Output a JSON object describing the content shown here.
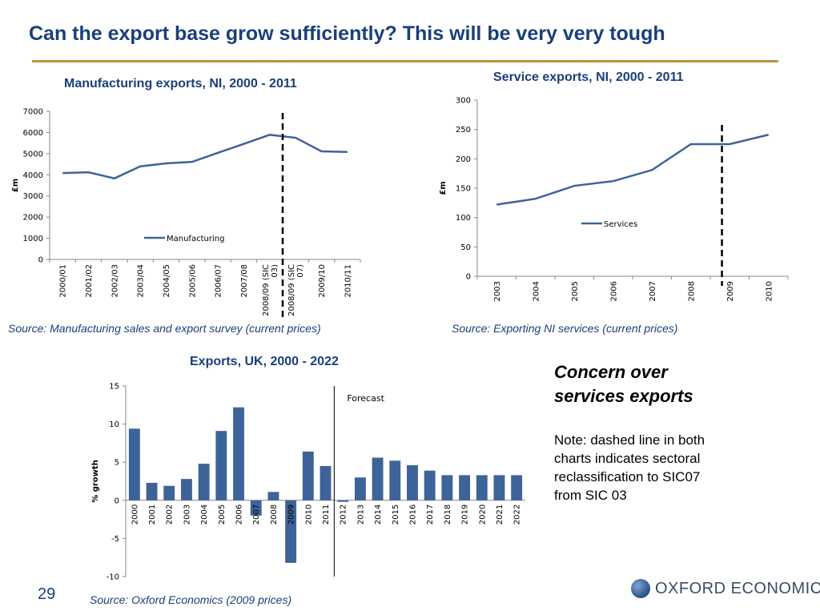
{
  "slide": {
    "title": "Can the export base grow sufficiently? This will be very very tough",
    "page_number": "29",
    "logo_text": "OXFORD ECONOMICS",
    "concern": "Concern over services exports",
    "note": "Note: dashed line in both charts indicates sectoral reclassification to SIC07 from SIC 03"
  },
  "sources": {
    "manufacturing": "Source: Manufacturing sales and export survey (current prices)",
    "services": "Source: Exporting NI services (current prices)",
    "uk": "Source: Oxford Economics (2009 prices)"
  },
  "colors": {
    "series": "#3e6399",
    "title": "#1a3f7a",
    "rule": "#b8973a"
  },
  "chart_data": [
    {
      "id": "manufacturing",
      "type": "line",
      "title": "Manufacturing exports, NI, 2000 - 2011",
      "ylabel": "£m",
      "xlabel": "",
      "ylim": [
        0,
        7000
      ],
      "yticks": [
        0,
        1000,
        2000,
        3000,
        4000,
        5000,
        6000,
        7000
      ],
      "categories": [
        "2000/01",
        "2001/02",
        "2002/03",
        "2003/04",
        "2004/05",
        "2005/06",
        "2006/07",
        "2007/08",
        "2008/09 (SIC 03)",
        "2008/09 (SIC 07)",
        "2009/10",
        "2010/11"
      ],
      "series": [
        {
          "name": "Manufacturing",
          "values": [
            4080,
            4120,
            3830,
            4400,
            4540,
            4610,
            5040,
            5460,
            5890,
            5750,
            5110,
            5080
          ]
        }
      ],
      "legend": "center",
      "grid": false,
      "reclassification_after": "2008/09 (SIC 03)"
    },
    {
      "id": "services",
      "type": "line",
      "title": "Service exports, NI, 2000 - 2011",
      "ylabel": "£m",
      "xlabel": "",
      "ylim": [
        0,
        300
      ],
      "yticks": [
        0,
        50,
        100,
        150,
        200,
        250,
        300
      ],
      "categories": [
        "2003",
        "2004",
        "2005",
        "2006",
        "2007",
        "2008",
        "2009",
        "2010"
      ],
      "series": [
        {
          "name": "Services",
          "values": [
            122,
            132,
            154,
            162,
            181,
            225,
            225,
            241
          ]
        }
      ],
      "legend": "center-right",
      "grid": false,
      "reclassification_at": "2009"
    },
    {
      "id": "uk",
      "type": "bar",
      "title": "Exports, UK, 2000 - 2022",
      "ylabel": "% growth",
      "xlabel": "",
      "ylim": [
        -10,
        15
      ],
      "yticks": [
        -10,
        -5,
        0,
        5,
        10,
        15
      ],
      "categories": [
        "2000",
        "2001",
        "2002",
        "2003",
        "2004",
        "2005",
        "2006",
        "2007",
        "2008",
        "2009",
        "2010",
        "2011",
        "2012",
        "2013",
        "2014",
        "2015",
        "2016",
        "2017",
        "2018",
        "2019",
        "2020",
        "2021",
        "2022"
      ],
      "series": [
        {
          "name": "",
          "values": [
            9.4,
            2.3,
            1.9,
            2.8,
            4.8,
            9.1,
            12.2,
            -2.0,
            1.1,
            -8.2,
            6.4,
            4.5,
            -0.2,
            3.0,
            5.6,
            5.2,
            4.6,
            3.9,
            3.3,
            3.3,
            3.3,
            3.3,
            3.3
          ]
        }
      ],
      "forecast_label": "Forecast",
      "forecast_after": "2011",
      "grid": false
    }
  ]
}
